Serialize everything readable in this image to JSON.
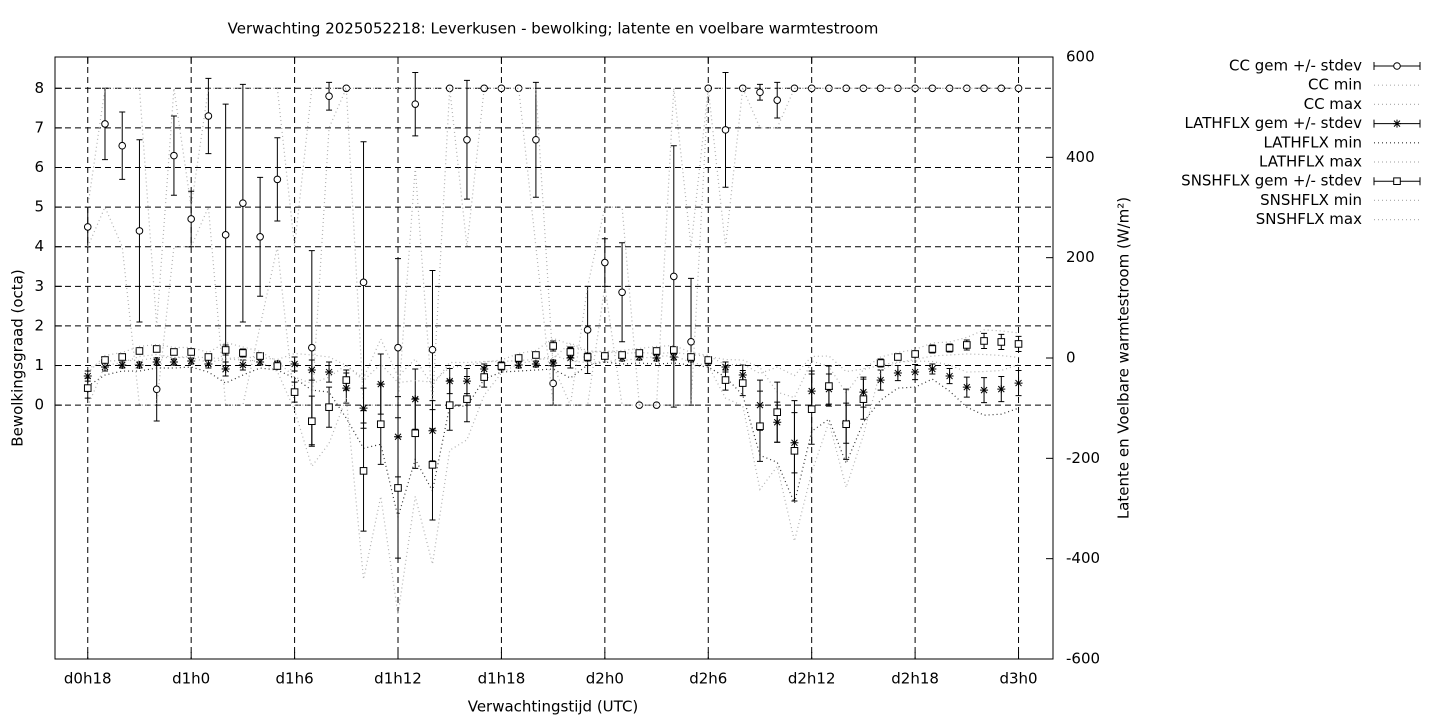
{
  "chart_data": {
    "type": "errorbar",
    "title": "Verwachting 2025052218: Leverkusen - bewolking; latente en voelbare warmtestroom",
    "x_label": "Verwachtingstijd (UTC)",
    "y_label": "Bewolkingsgraad (octa)",
    "y2_label": "Latente en Voelbare warmtestroom (W/m²)",
    "grid": true,
    "x": [
      0,
      1,
      2,
      3,
      4,
      5,
      6,
      7,
      8,
      9,
      10,
      11,
      12,
      13,
      14,
      15,
      16,
      17,
      18,
      19,
      20,
      21,
      22,
      23,
      24,
      25,
      26,
      27,
      28,
      29,
      30,
      31,
      32,
      33,
      34,
      35,
      36,
      37,
      38,
      39,
      40,
      41,
      42,
      43,
      44,
      45,
      46,
      47,
      48,
      49,
      50,
      51,
      52,
      53,
      54
    ],
    "xlim": [
      -1.9,
      56
    ],
    "xticks": [
      {
        "value": 0,
        "label": "d0h18"
      },
      {
        "value": 6,
        "label": "d1h0"
      },
      {
        "value": 12,
        "label": "d1h6"
      },
      {
        "value": 18,
        "label": "d1h12"
      },
      {
        "value": 24,
        "label": "d1h18"
      },
      {
        "value": 30,
        "label": "d2h0"
      },
      {
        "value": 36,
        "label": "d2h6"
      },
      {
        "value": 42,
        "label": "d2h12"
      },
      {
        "value": 48,
        "label": "d2h18"
      },
      {
        "value": 54,
        "label": "d3h0"
      }
    ],
    "ylim": [
      -6.41,
      8.79
    ],
    "yticks": [
      0,
      1,
      2,
      3,
      4,
      5,
      6,
      7,
      8
    ],
    "y2lim": [
      -600,
      600
    ],
    "y2ticks": [
      -600,
      -400,
      -200,
      0,
      200,
      400,
      600
    ],
    "series": [
      {
        "name": "CC gem +/- stdev",
        "style": "errorbar",
        "marker": "circle",
        "color": "#000000",
        "values": [
          4.5,
          7.1,
          6.55,
          4.4,
          0.4,
          6.3,
          4.7,
          7.3,
          4.3,
          5.1,
          4.25,
          5.7,
          null,
          1.45,
          7.8,
          8,
          3.1,
          null,
          1.45,
          7.6,
          1.4,
          8,
          6.7,
          8,
          8,
          8,
          6.7,
          0.55,
          null,
          1.9,
          3.6,
          2.85,
          0,
          0,
          3.25,
          1.6,
          8,
          6.95,
          8,
          7.9,
          7.7,
          8,
          8,
          8,
          8,
          8,
          8,
          8,
          8,
          8,
          8,
          8,
          8,
          8,
          8
        ],
        "errors": [
          0.5,
          0.9,
          0.85,
          2.3,
          0.8,
          1.0,
          0.7,
          0.95,
          3.3,
          3.0,
          1.5,
          1.05,
          null,
          2.45,
          0.35,
          0,
          3.55,
          null,
          2.25,
          0.8,
          2.0,
          0,
          1.5,
          0,
          0,
          0,
          1.45,
          0.55,
          null,
          1.1,
          0.6,
          1.25,
          0,
          0,
          3.3,
          1.6,
          0,
          1.45,
          0,
          0.2,
          0.45,
          0,
          0,
          0,
          0,
          0,
          0,
          0,
          0,
          0,
          0,
          0,
          0,
          0,
          0
        ]
      },
      {
        "name": "CC min",
        "style": "dotted",
        "color": "#b0b0b0",
        "values": [
          4,
          5,
          4,
          0,
          0,
          4,
          4,
          5,
          0,
          0,
          2,
          4,
          0,
          0,
          7,
          8,
          0,
          0,
          0,
          6,
          0,
          8,
          4,
          8,
          8,
          8,
          4,
          0,
          0,
          0,
          3,
          0,
          0,
          0,
          0,
          0,
          8,
          4,
          8,
          7,
          7,
          8,
          8,
          8,
          8,
          8,
          8,
          8,
          8,
          8,
          8,
          8,
          8,
          8,
          8
        ]
      },
      {
        "name": "CC max",
        "style": "dotted",
        "color": "#b0b0b0",
        "values": [
          5,
          8,
          8,
          8,
          2,
          8,
          5,
          8,
          8,
          8,
          8,
          8,
          4,
          8,
          8,
          8,
          8,
          8,
          8,
          8,
          8,
          8,
          8,
          8,
          8,
          8,
          8,
          1,
          0,
          3,
          5,
          5,
          0,
          0,
          8,
          4,
          8,
          8,
          8,
          8,
          8,
          8,
          8,
          8,
          8,
          8,
          8,
          8,
          8,
          8,
          8,
          8,
          8,
          8,
          8
        ]
      },
      {
        "name": "LATHFLX gem +/- stdev",
        "style": "errorbar",
        "marker": "star",
        "color": "#000000",
        "axis": "y2",
        "values": [
          -36,
          -18,
          -14,
          -14,
          -8,
          -8,
          -6,
          -12,
          -22,
          -14,
          -8,
          -12,
          -12,
          -24,
          -28,
          -60,
          -100,
          -52,
          -157,
          -82,
          -145,
          -46,
          -46,
          -22,
          -16,
          -14,
          -12,
          -10,
          0,
          2,
          4,
          0,
          2,
          0,
          2,
          -2,
          -6,
          -18,
          -34,
          -94,
          -128,
          -169,
          -66,
          -62,
          -130,
          -68,
          -44,
          -30,
          -28,
          -22,
          -36,
          -58,
          -64,
          -62,
          -50
        ],
        "errors": [
          10,
          8,
          6,
          6,
          6,
          6,
          6,
          8,
          14,
          10,
          6,
          6,
          14,
          20,
          20,
          30,
          40,
          60,
          80,
          60,
          60,
          25,
          25,
          10,
          6,
          6,
          6,
          6,
          20,
          8,
          6,
          6,
          6,
          6,
          6,
          6,
          6,
          10,
          20,
          50,
          40,
          60,
          40,
          30,
          40,
          30,
          20,
          15,
          15,
          10,
          15,
          20,
          25,
          25,
          25
        ]
      },
      {
        "name": "LATHFLX min",
        "style": "dotted",
        "color": "#303030",
        "axis": "y2",
        "values": [
          -56,
          -34,
          -26,
          -26,
          -20,
          -20,
          -18,
          -28,
          -50,
          -34,
          -20,
          -24,
          -40,
          -64,
          -68,
          -120,
          -180,
          -172,
          -317,
          -202,
          -265,
          -96,
          -96,
          -42,
          -28,
          -26,
          -24,
          -22,
          -40,
          -14,
          -8,
          -12,
          -10,
          -12,
          -10,
          -14,
          -18,
          -38,
          -74,
          -194,
          -208,
          -289,
          -146,
          -122,
          -210,
          -128,
          -84,
          -60,
          -58,
          -42,
          -66,
          -98,
          -114,
          -112,
          -100
        ]
      },
      {
        "name": "LATHFLX max",
        "style": "dotted",
        "color": "#b0b0b0",
        "axis": "y2",
        "values": [
          -21,
          -6,
          -5,
          -5,
          1,
          1,
          3,
          0,
          -1,
          1,
          1,
          -3,
          9,
          6,
          2,
          -15,
          -40,
          38,
          -37,
          -2,
          -55,
          -9,
          -9,
          -7,
          -7,
          -5,
          -3,
          -1,
          30,
          14,
          13,
          9,
          11,
          9,
          11,
          7,
          3,
          -3,
          -4,
          -19,
          -68,
          -79,
          -6,
          -17,
          -70,
          -23,
          -14,
          -8,
          -6,
          -7,
          -14,
          -28,
          -27,
          -25,
          -13
        ]
      },
      {
        "name": "SNSHFLX gem +/- stdev",
        "style": "errorbar",
        "marker": "square",
        "color": "#000000",
        "axis": "y2",
        "values": [
          -60,
          -4,
          2,
          14,
          18,
          12,
          12,
          2,
          16,
          10,
          4,
          -16,
          -68,
          -126,
          -98,
          -44,
          -225,
          -132,
          -259,
          -150,
          -213,
          -94,
          -82,
          -38,
          -16,
          0,
          6,
          24,
          12,
          2,
          4,
          6,
          10,
          14,
          16,
          2,
          -4,
          -44,
          -50,
          -136,
          -108,
          -185,
          -102,
          -56,
          -132,
          -82,
          -10,
          2,
          8,
          18,
          20,
          26,
          34,
          32,
          28
        ],
        "errors": [
          20,
          6,
          6,
          6,
          6,
          6,
          6,
          6,
          10,
          8,
          6,
          6,
          20,
          50,
          40,
          20,
          120,
          80,
          140,
          70,
          110,
          50,
          45,
          20,
          8,
          6,
          6,
          10,
          10,
          6,
          6,
          6,
          6,
          6,
          6,
          6,
          6,
          20,
          25,
          70,
          60,
          100,
          70,
          40,
          70,
          40,
          8,
          6,
          6,
          8,
          8,
          10,
          15,
          15,
          15
        ]
      },
      {
        "name": "SNSHFLX min",
        "style": "dotted",
        "color": "#b0b0b0",
        "axis": "y2",
        "values": [
          -96,
          -15,
          -9,
          3,
          7,
          1,
          1,
          -9,
          -2,
          -4,
          -7,
          -27,
          -104,
          -216,
          -170,
          -80,
          -441,
          -276,
          -511,
          -276,
          -411,
          -184,
          -163,
          -74,
          -30,
          -11,
          -5,
          6,
          -6,
          -9,
          -7,
          -5,
          -1,
          3,
          5,
          -9,
          -15,
          -80,
          -95,
          -262,
          -216,
          -365,
          -228,
          -128,
          -258,
          -154,
          -24,
          -9,
          -3,
          4,
          6,
          8,
          7,
          5,
          1
        ]
      },
      {
        "name": "SNSHFLX max",
        "style": "dotted",
        "color": "#b0b0b0",
        "axis": "y2",
        "values": [
          -30,
          5,
          11,
          23,
          27,
          21,
          21,
          11,
          31,
          22,
          13,
          -7,
          -38,
          -51,
          -38,
          -14,
          -45,
          -12,
          -49,
          -45,
          -48,
          -19,
          -15,
          -8,
          -4,
          9,
          15,
          39,
          27,
          11,
          13,
          15,
          19,
          23,
          25,
          11,
          5,
          -14,
          -12,
          -31,
          -18,
          -35,
          3,
          4,
          -27,
          -22,
          2,
          11,
          17,
          30,
          32,
          41,
          56,
          54,
          50
        ]
      }
    ]
  }
}
